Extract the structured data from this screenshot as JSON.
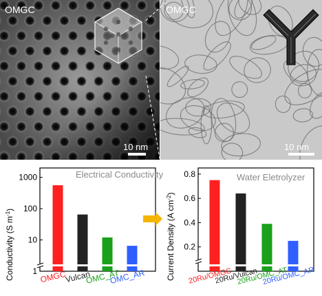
{
  "figure": {
    "left_panel": {
      "label": "OMGC",
      "scale_bar": "10 nm"
    },
    "right_panel": {
      "label": "OMGC",
      "scale_bar": "10 nm"
    }
  },
  "chart_data": [
    {
      "type": "bar",
      "title": "Electrical Conductivity",
      "ylabel": "Conductivity (S m",
      "ylabel_sup": "-1",
      "ylabel_close": ")",
      "yscale": "log",
      "ylim": [
        1,
        2000
      ],
      "yticks": [
        "1",
        "10",
        "100",
        "1000"
      ],
      "categories": [
        "OMGC",
        "Vulcan",
        "OMC_AT",
        "OMC_AR"
      ],
      "values": [
        560,
        65,
        12,
        6.5
      ],
      "colors": [
        "#ff2020",
        "#222222",
        "#1aa01a",
        "#2f5fff"
      ],
      "axis_break": true,
      "grid": false
    },
    {
      "type": "bar",
      "title": "Water Eletrolyzer",
      "ylabel": "Current Density (A cm",
      "ylabel_sup": "-2",
      "ylabel_close": ")",
      "ylim": [
        0,
        0.85
      ],
      "yticks": [
        "0.2",
        "0.4",
        "0.6",
        "0.8"
      ],
      "categories": [
        "20Ru/OMGC",
        "20Ru/Vulcan",
        "20Ru/OMC_AT",
        "20Ru/OMC_AR"
      ],
      "values": [
        0.75,
        0.64,
        0.39,
        0.25
      ],
      "colors": [
        "#ff2020",
        "#222222",
        "#1aa01a",
        "#2f5fff"
      ],
      "axis_break": true,
      "grid": false
    }
  ],
  "arrow_color": "#f5b400"
}
